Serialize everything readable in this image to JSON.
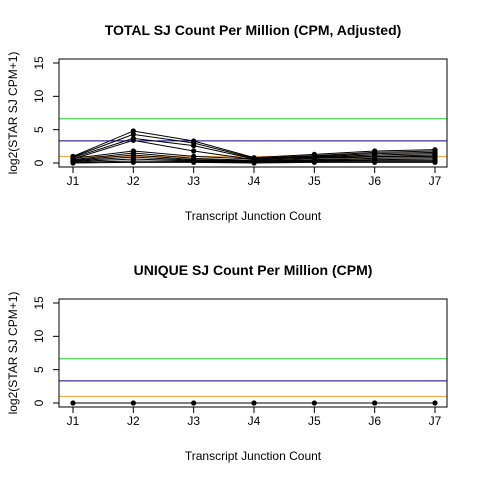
{
  "chart_data": [
    {
      "type": "line",
      "title": "TOTAL SJ Count Per Million (CPM, Adjusted)",
      "xlabel": "Transcript Junction Count",
      "ylabel": "log2(STAR SJ CPM+1)",
      "categories": [
        "J1",
        "J2",
        "J3",
        "J4",
        "J5",
        "J6",
        "J7"
      ],
      "yticks": [
        0,
        5,
        10,
        15
      ],
      "ylim": [
        0,
        15
      ],
      "grid": false,
      "hlines": [
        {
          "y": 6.64,
          "color": "#22cc22"
        },
        {
          "y": 3.32,
          "color": "#000088"
        },
        {
          "y": 1.0,
          "color": "#f0a030"
        }
      ],
      "series_color": "#000000",
      "series": [
        {
          "values": [
            1.0,
            4.8,
            3.3,
            0.8,
            1.3,
            1.8,
            2.0
          ]
        },
        {
          "values": [
            0.9,
            4.3,
            3.0,
            0.7,
            1.1,
            1.6,
            1.8
          ]
        },
        {
          "values": [
            0.8,
            3.7,
            2.6,
            0.6,
            1.0,
            1.4,
            1.6
          ]
        },
        {
          "values": [
            0.6,
            3.4,
            1.8,
            0.5,
            0.9,
            1.2,
            1.4
          ]
        },
        {
          "values": [
            0.7,
            1.8,
            1.0,
            0.6,
            0.8,
            1.0,
            1.2
          ]
        },
        {
          "values": [
            0.5,
            1.5,
            0.7,
            0.4,
            0.7,
            0.9,
            1.0
          ]
        },
        {
          "values": [
            0.4,
            1.2,
            0.5,
            0.3,
            0.5,
            0.7,
            0.8
          ]
        },
        {
          "values": [
            0.3,
            0.9,
            0.4,
            0.3,
            0.4,
            0.5,
            0.6
          ]
        },
        {
          "values": [
            0.2,
            0.6,
            0.3,
            0.2,
            0.3,
            0.4,
            0.4
          ]
        },
        {
          "values": [
            0.1,
            0.3,
            0.2,
            0.1,
            0.2,
            0.2,
            0.2
          ]
        },
        {
          "values": [
            0.0,
            0.1,
            0.1,
            0.0,
            0.1,
            0.1,
            0.1
          ]
        }
      ]
    },
    {
      "type": "line",
      "title": "UNIQUE SJ Count Per Million (CPM)",
      "xlabel": "Transcript Junction Count",
      "ylabel": "log2(STAR SJ CPM+1)",
      "categories": [
        "J1",
        "J2",
        "J3",
        "J4",
        "J5",
        "J6",
        "J7"
      ],
      "yticks": [
        0,
        5,
        10,
        15
      ],
      "ylim": [
        0,
        15
      ],
      "grid": false,
      "hlines": [
        {
          "y": 6.64,
          "color": "#22cc22"
        },
        {
          "y": 3.32,
          "color": "#000088"
        },
        {
          "y": 1.0,
          "color": "#f0a030"
        }
      ],
      "series_color": "#000000",
      "series": [
        {
          "values": [
            0,
            0,
            0,
            0,
            0,
            0,
            0
          ]
        }
      ]
    }
  ]
}
